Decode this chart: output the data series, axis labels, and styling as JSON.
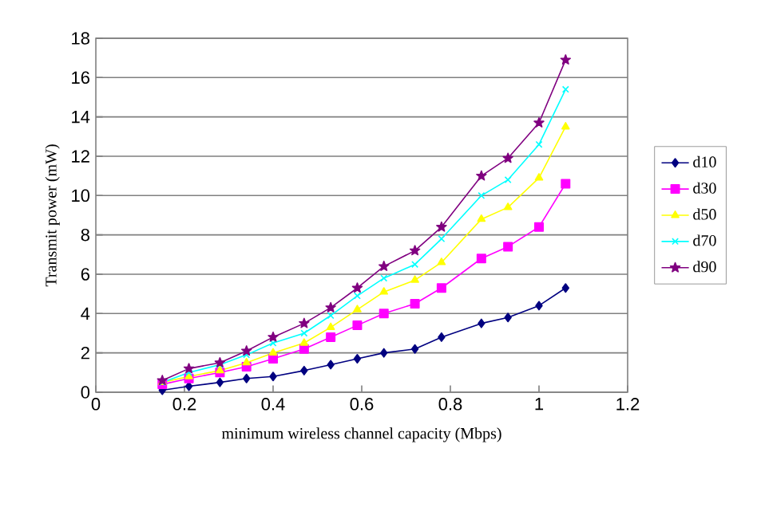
{
  "chart_data": {
    "type": "line",
    "xlabel": "minimum wireless channel capacity (Mbps)",
    "ylabel": "Transmit power (mW)",
    "x": [
      0.15,
      0.21,
      0.28,
      0.34,
      0.4,
      0.47,
      0.53,
      0.59,
      0.65,
      0.72,
      0.78,
      0.87,
      0.93,
      1.0,
      1.06
    ],
    "series": [
      {
        "name": "d10",
        "color": "#000080",
        "marker": "diamond",
        "values": [
          0.1,
          0.3,
          0.5,
          0.7,
          0.8,
          1.1,
          1.4,
          1.7,
          2.0,
          2.2,
          2.8,
          3.5,
          3.8,
          4.4,
          5.3
        ]
      },
      {
        "name": "d30",
        "color": "#ff00ff",
        "marker": "square",
        "values": [
          0.4,
          0.7,
          1.0,
          1.3,
          1.7,
          2.2,
          2.8,
          3.4,
          4.0,
          4.5,
          5.3,
          6.8,
          7.4,
          8.4,
          10.6
        ]
      },
      {
        "name": "d50",
        "color": "#ffff00",
        "marker": "triangle",
        "values": [
          0.5,
          0.8,
          1.1,
          1.5,
          2.0,
          2.5,
          3.3,
          4.2,
          5.1,
          5.7,
          6.6,
          8.8,
          9.4,
          10.9,
          13.5
        ]
      },
      {
        "name": "d70",
        "color": "#00ffff",
        "marker": "cross",
        "values": [
          0.5,
          1.0,
          1.4,
          1.9,
          2.5,
          3.0,
          3.9,
          4.9,
          5.8,
          6.5,
          7.8,
          10.0,
          10.8,
          12.6,
          15.4
        ]
      },
      {
        "name": "d90",
        "color": "#800080",
        "marker": "star",
        "values": [
          0.6,
          1.2,
          1.5,
          2.1,
          2.8,
          3.5,
          4.3,
          5.3,
          6.4,
          7.2,
          8.4,
          11.0,
          11.9,
          13.7,
          16.9
        ]
      }
    ],
    "xlim": [
      0,
      1.2
    ],
    "xticks": [
      0,
      0.2,
      0.4,
      0.6,
      0.8,
      1,
      1.2
    ],
    "ylim": [
      0,
      18
    ],
    "yticks": [
      0,
      2,
      4,
      6,
      8,
      10,
      12,
      14,
      16,
      18
    ],
    "grid": "y",
    "legend": "right",
    "line_style": "solid"
  }
}
